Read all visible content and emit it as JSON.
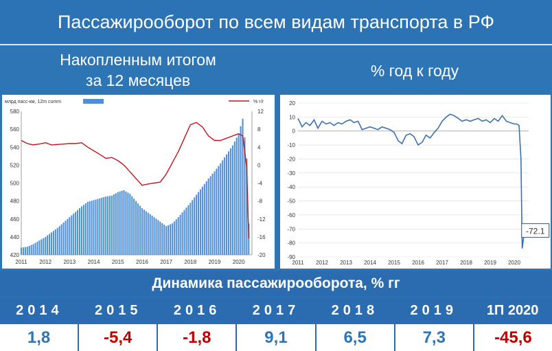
{
  "header": {
    "title": "Пассажирооборот по всем видам транспорта в РФ"
  },
  "left_subtitle": {
    "line1": "Накопленным итогом",
    "line2": "за 12 месяцев"
  },
  "right_subtitle": "% год к году",
  "colors": {
    "bar": "#4f8fd6",
    "line_red": "#c0141a",
    "line_blue": "#3a6fb0",
    "positive": "#2e75b6",
    "negative": "#c00000"
  },
  "chart_data": [
    {
      "type": "bar+line",
      "title": "",
      "legend": {
        "bar_label": "млрд пасс-км, 12m cumm",
        "line_label": "% г/г",
        "placement": "top"
      },
      "x_ticks": [
        "2011",
        "2012",
        "2013",
        "2014",
        "2015",
        "2016",
        "2017",
        "2018",
        "2019",
        "2020"
      ],
      "left_axis": {
        "ticks": [
          420,
          440,
          460,
          480,
          500,
          520,
          540,
          560,
          580
        ],
        "ylim": [
          420,
          580
        ]
      },
      "right_axis": {
        "ticks": [
          -20,
          -16,
          -12,
          -8,
          -4,
          0,
          4,
          8,
          12
        ],
        "ylim": [
          -20,
          12
        ]
      },
      "bar_series": {
        "name": "млрд пасс-км, 12m cumm",
        "x": [
          2011.0,
          2011.25,
          2011.5,
          2011.75,
          2012.0,
          2012.25,
          2012.5,
          2012.75,
          2013.0,
          2013.25,
          2013.5,
          2013.75,
          2014.0,
          2014.25,
          2014.5,
          2014.75,
          2015.0,
          2015.25,
          2015.5,
          2015.75,
          2016.0,
          2016.25,
          2016.5,
          2016.75,
          2017.0,
          2017.25,
          2017.5,
          2017.75,
          2018.0,
          2018.25,
          2018.5,
          2018.75,
          2019.0,
          2019.25,
          2019.5,
          2019.75,
          2020.0,
          2020.17,
          2020.33,
          2020.42
        ],
        "values": [
          428,
          429,
          432,
          436,
          440,
          445,
          450,
          456,
          462,
          468,
          474,
          479,
          481,
          483,
          485,
          486,
          490,
          492,
          488,
          480,
          472,
          467,
          462,
          457,
          452,
          455,
          462,
          470,
          478,
          487,
          496,
          505,
          513,
          522,
          532,
          542,
          555,
          572,
          530,
          452
        ]
      },
      "line_series": {
        "name": "% г/г",
        "x": [
          2011.0,
          2011.25,
          2011.5,
          2011.75,
          2012.0,
          2012.25,
          2012.5,
          2012.75,
          2013.0,
          2013.25,
          2013.5,
          2013.75,
          2014.0,
          2014.25,
          2014.5,
          2014.75,
          2015.0,
          2015.25,
          2015.5,
          2015.75,
          2016.0,
          2016.25,
          2016.5,
          2016.75,
          2017.0,
          2017.25,
          2017.5,
          2017.75,
          2018.0,
          2018.25,
          2018.5,
          2018.75,
          2019.0,
          2019.25,
          2019.5,
          2019.75,
          2020.0,
          2020.17,
          2020.33,
          2020.42
        ],
        "values": [
          5.5,
          4.8,
          4.5,
          4.7,
          5.0,
          4.5,
          4.6,
          4.7,
          4.8,
          4.8,
          5.0,
          4.0,
          3.2,
          2.4,
          1.5,
          1.7,
          1.0,
          0.0,
          -1.5,
          -3.0,
          -4.5,
          -4.2,
          -4.0,
          -3.8,
          -2.0,
          0.5,
          3.0,
          6.0,
          9.0,
          9.5,
          8.5,
          6.5,
          5.5,
          5.5,
          6.0,
          6.5,
          7.0,
          6.5,
          0.0,
          -17.0
        ]
      }
    },
    {
      "type": "line",
      "title": "",
      "x_ticks": [
        "2011",
        "2012",
        "2013",
        "2014",
        "2015",
        "2016",
        "2017",
        "2018",
        "2019",
        "2020"
      ],
      "y_axis": {
        "ticks": [
          20,
          10,
          0,
          -10,
          -20,
          -30,
          -40,
          -50,
          -60,
          -70,
          -80,
          -90
        ],
        "ylim": [
          -90,
          20
        ]
      },
      "series": {
        "name": "",
        "x": [
          2011.0,
          2011.17,
          2011.33,
          2011.5,
          2011.67,
          2011.83,
          2012.0,
          2012.17,
          2012.33,
          2012.5,
          2012.67,
          2012.83,
          2013.0,
          2013.17,
          2013.33,
          2013.5,
          2013.67,
          2013.83,
          2014.0,
          2014.17,
          2014.33,
          2014.5,
          2014.67,
          2014.83,
          2015.0,
          2015.17,
          2015.33,
          2015.5,
          2015.67,
          2015.83,
          2016.0,
          2016.17,
          2016.33,
          2016.5,
          2016.67,
          2016.83,
          2017.0,
          2017.17,
          2017.33,
          2017.5,
          2017.67,
          2017.83,
          2018.0,
          2018.17,
          2018.33,
          2018.5,
          2018.67,
          2018.83,
          2019.0,
          2019.17,
          2019.33,
          2019.5,
          2019.67,
          2019.83,
          2020.0,
          2020.1,
          2020.2,
          2020.28,
          2020.33,
          2020.42
        ],
        "values": [
          9,
          3,
          6,
          4,
          8,
          2,
          7,
          5,
          6,
          4,
          6,
          5,
          7,
          8,
          6,
          7,
          1,
          2,
          3,
          2,
          1,
          3,
          2,
          1,
          -1,
          -7,
          -9,
          -3,
          -2,
          -4,
          -10,
          -8,
          -3,
          -5,
          -1,
          2,
          7,
          10,
          12,
          11,
          9,
          7,
          8,
          7,
          8,
          9,
          7,
          8,
          6,
          9,
          7,
          11,
          7,
          6,
          5,
          5,
          4,
          -20,
          -84,
          -72.1
        ]
      },
      "annotation": "-72.1"
    }
  ],
  "table": {
    "title": "Динамика пассажирооборота, % гг",
    "years": [
      "2014",
      "2015",
      "2016",
      "2017",
      "2018",
      "2019",
      "1П 2020"
    ],
    "values": [
      "1,8",
      "-5,4",
      "-1,8",
      "9,1",
      "6,5",
      "7,3",
      "-45,6"
    ],
    "value_colors": [
      "#2e75b6",
      "#c00000",
      "#c00000",
      "#2e75b6",
      "#2e75b6",
      "#2e75b6",
      "#c00000"
    ]
  }
}
